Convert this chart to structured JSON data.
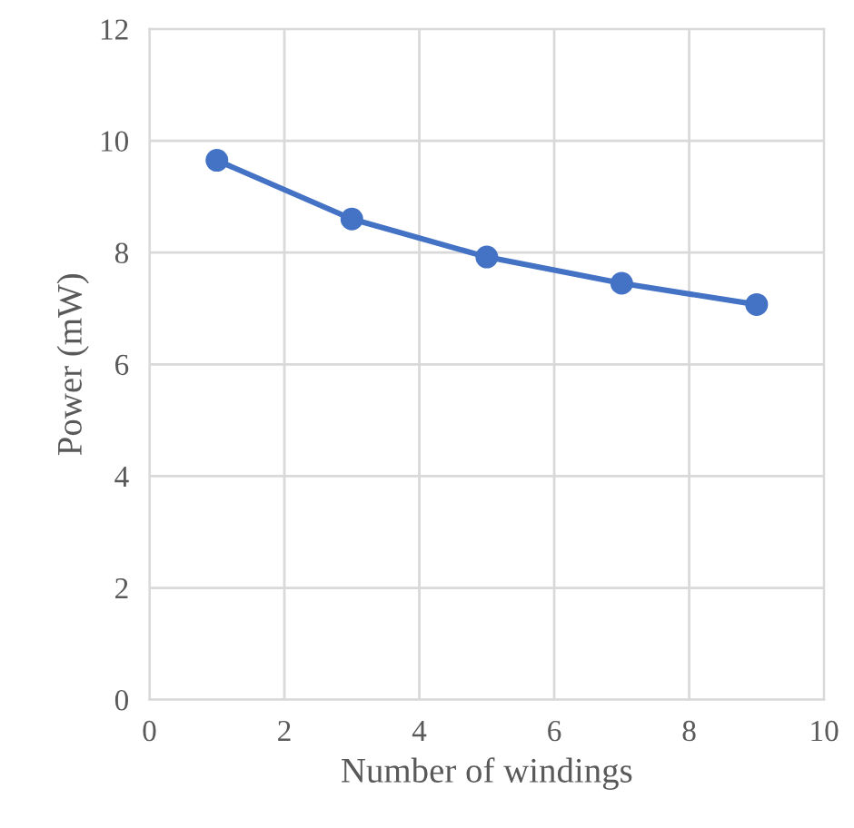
{
  "chart_data": {
    "type": "line",
    "xlabel": "Number of windings",
    "ylabel": "Power (mW)",
    "x": [
      1,
      3,
      5,
      7,
      9
    ],
    "series": [
      {
        "color": "#4472c4",
        "values": [
          9.65,
          8.6,
          7.92,
          7.45,
          7.07
        ]
      }
    ],
    "xlim": [
      0,
      10
    ],
    "xticks": [
      0,
      2,
      4,
      6,
      8,
      10
    ],
    "ylim": [
      0,
      12
    ],
    "yticks": [
      0,
      2,
      4,
      6,
      8,
      10,
      12
    ],
    "grid": true,
    "marker": "circle",
    "line_style": "solid"
  }
}
